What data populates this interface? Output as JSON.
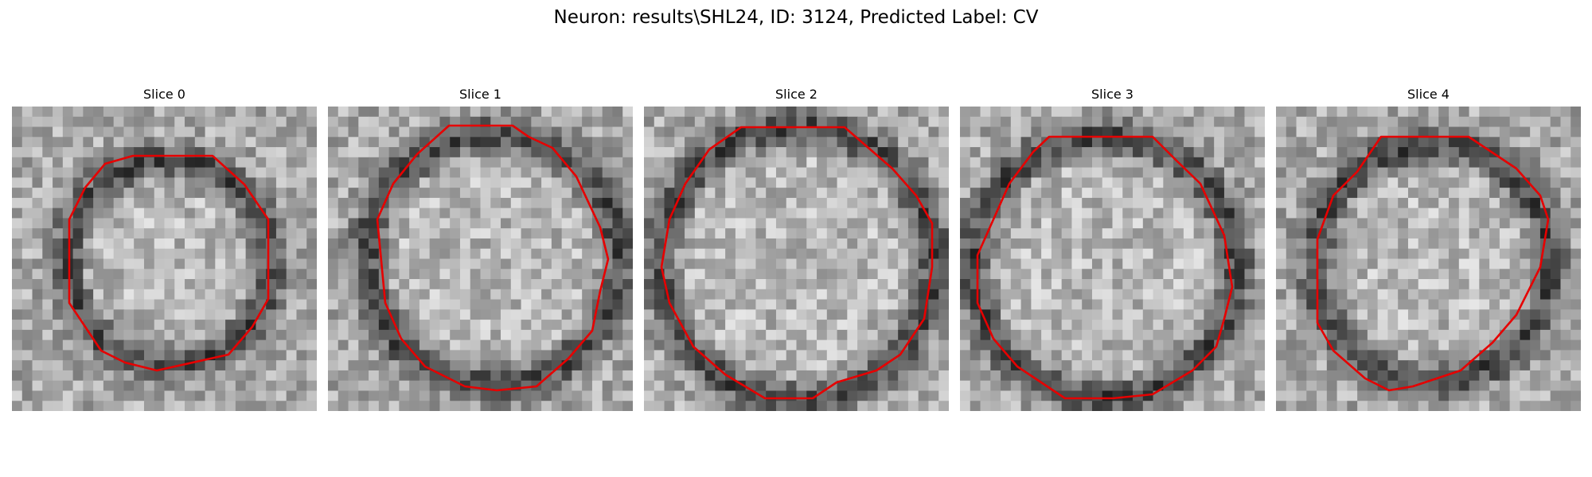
{
  "figure": {
    "title": "Neuron: results\\SHL24, ID: 3124, Predicted Label: CV"
  },
  "panels": [
    {
      "title": "Slice 0"
    },
    {
      "title": "Slice 1"
    },
    {
      "title": "Slice 2"
    },
    {
      "title": "Slice 3"
    },
    {
      "title": "Slice 4"
    }
  ],
  "colors": {
    "contour": "#e60000",
    "background": "#ffffff",
    "colormap": "gray"
  }
}
